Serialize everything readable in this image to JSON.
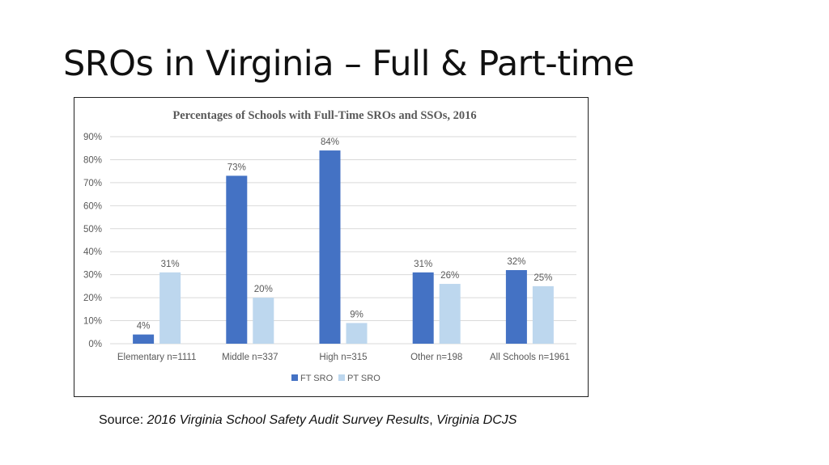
{
  "slide": {
    "title": "SROs in Virginia – Full & Part-time",
    "source_prefix": "Source: ",
    "source_italic_1": "2016 Virginia School Safety Audit Survey Results",
    "source_sep": ", ",
    "source_italic_2": "Virginia DCJS"
  },
  "colors": {
    "ft": "#4472C4",
    "pt": "#BDD7EE",
    "grid": "#D9D9D9",
    "text": "#595959"
  },
  "chart_data": {
    "type": "bar",
    "title": "Percentages of Schools with Full-Time SROs and SSOs, 2016",
    "categories": [
      "Elementary n=1111",
      "Middle n=337",
      "High n=315",
      "Other n=198",
      "All Schools n=1961"
    ],
    "series": [
      {
        "name": "FT SRO",
        "values": [
          4,
          73,
          84,
          31,
          32
        ],
        "labels": [
          "4%",
          "73%",
          "84%",
          "31%",
          "32%"
        ]
      },
      {
        "name": "PT SRO",
        "values": [
          31,
          20,
          9,
          26,
          25
        ],
        "labels": [
          "31%",
          "20%",
          "9%",
          "26%",
          "25%"
        ]
      }
    ],
    "ylim": [
      0,
      90
    ],
    "yticks": [
      "0%",
      "10%",
      "20%",
      "30%",
      "40%",
      "50%",
      "60%",
      "70%",
      "80%",
      "90%"
    ],
    "grid": true,
    "legend": "bottom"
  }
}
